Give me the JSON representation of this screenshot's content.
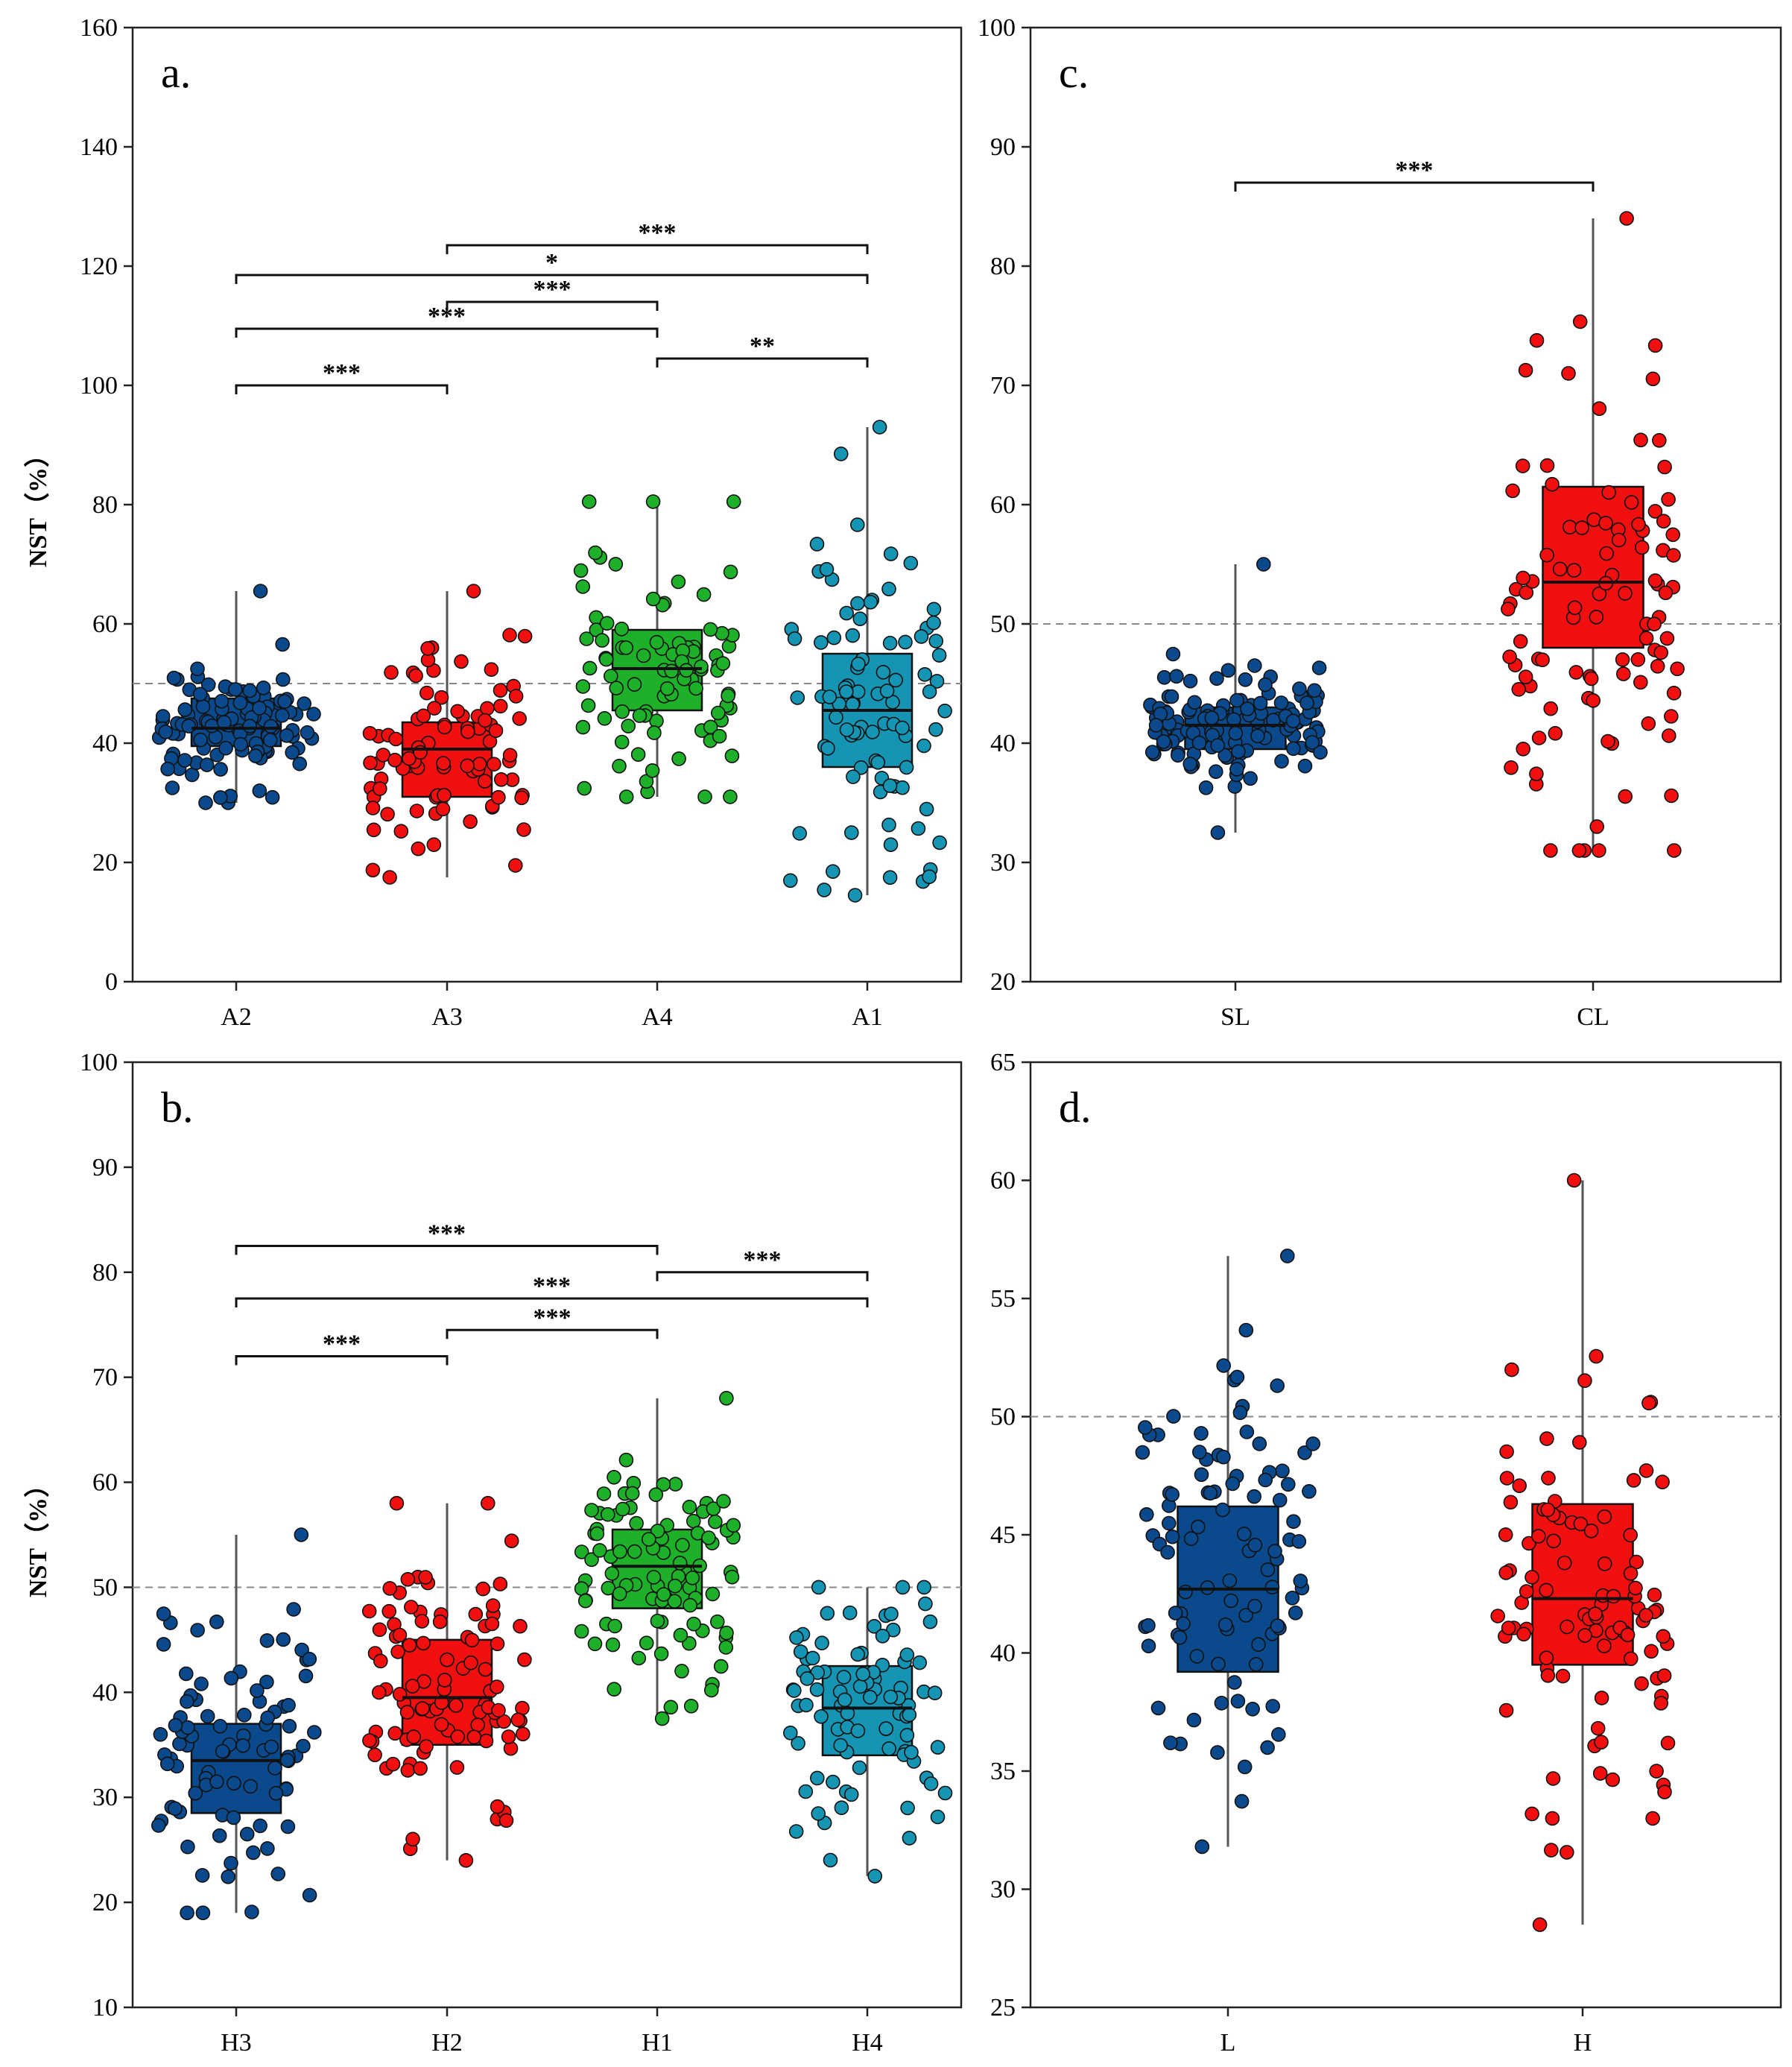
{
  "colors": {
    "navy": "#0a4a8c",
    "red": "#f20f0f",
    "green": "#1fb02a",
    "teal": "#1595b3"
  },
  "chart_data": [
    {
      "type": "box-strip",
      "panel_label": "a.",
      "ylabel": "NST（%）",
      "ylim": [
        0,
        160
      ],
      "yticks": [
        "0",
        "20",
        "40",
        "60",
        "80",
        "100",
        "120",
        "140",
        "160"
      ],
      "reference_line": 50,
      "categories": [
        "A2",
        "A3",
        "A4",
        "A1"
      ],
      "series": [
        {
          "name": "A2",
          "color": "navy",
          "q1": 39.5,
          "median": 42.5,
          "q3": 47.5,
          "lower": 30,
          "upper": 65.5,
          "n_points": 110
        },
        {
          "name": "A3",
          "color": "red",
          "q1": 31,
          "median": 39,
          "q3": 43.5,
          "lower": 17.5,
          "upper": 65.5,
          "n_points": 90
        },
        {
          "name": "A4",
          "color": "green",
          "q1": 45.5,
          "median": 52.5,
          "q3": 59,
          "lower": 31,
          "upper": 80.5,
          "n_points": 90
        },
        {
          "name": "A1",
          "color": "teal",
          "q1": 36,
          "median": 45.5,
          "q3": 55,
          "lower": 14.5,
          "upper": 93,
          "n_points": 90
        }
      ],
      "significance": [
        {
          "from": "A2",
          "to": "A3",
          "y": 100,
          "label": "***"
        },
        {
          "from": "A4",
          "to": "A1",
          "y": 104.5,
          "label": "**"
        },
        {
          "from": "A2",
          "to": "A4",
          "y": 109.5,
          "label": "***"
        },
        {
          "from": "A3",
          "to": "A4",
          "y": 114,
          "label": "***"
        },
        {
          "from": "A2",
          "to": "A1",
          "y": 118.5,
          "label": "*"
        },
        {
          "from": "A3",
          "to": "A1",
          "y": 123.5,
          "label": "***"
        }
      ]
    },
    {
      "type": "box-strip",
      "panel_label": "b.",
      "ylabel": "NST（%）",
      "ylim": [
        10,
        100
      ],
      "yticks": [
        "10",
        "20",
        "30",
        "40",
        "50",
        "60",
        "70",
        "80",
        "90",
        "100"
      ],
      "reference_line": 50,
      "categories": [
        "H3",
        "H2",
        "H1",
        "H4"
      ],
      "series": [
        {
          "name": "H3",
          "color": "navy",
          "q1": 28.5,
          "median": 33.5,
          "q3": 37,
          "lower": 19,
          "upper": 55,
          "n_points": 90
        },
        {
          "name": "H2",
          "color": "red",
          "q1": 35,
          "median": 39.5,
          "q3": 45,
          "lower": 24,
          "upper": 58,
          "n_points": 100
        },
        {
          "name": "H1",
          "color": "green",
          "q1": 48,
          "median": 52,
          "q3": 55.5,
          "lower": 37.5,
          "upper": 68,
          "n_points": 100
        },
        {
          "name": "H4",
          "color": "teal",
          "q1": 34,
          "median": 38.5,
          "q3": 42.5,
          "lower": 22.5,
          "upper": 50,
          "n_points": 90
        }
      ],
      "significance": [
        {
          "from": "H3",
          "to": "H2",
          "y": 72,
          "label": "***"
        },
        {
          "from": "H2",
          "to": "H1",
          "y": 74.5,
          "label": "***"
        },
        {
          "from": "H3",
          "to": "H4",
          "y": 77.5,
          "label": "***"
        },
        {
          "from": "H1",
          "to": "H4",
          "y": 80,
          "label": "***"
        },
        {
          "from": "H3",
          "to": "H1",
          "y": 82.5,
          "label": "***"
        }
      ]
    },
    {
      "type": "box-strip",
      "panel_label": "c.",
      "ylabel": "",
      "ylim": [
        20,
        100
      ],
      "yticks": [
        "20",
        "30",
        "40",
        "50",
        "60",
        "70",
        "80",
        "90",
        "100"
      ],
      "reference_line": 50,
      "categories": [
        "SL",
        "CL"
      ],
      "series": [
        {
          "name": "SL",
          "color": "navy",
          "q1": 39.5,
          "median": 41.5,
          "q3": 43,
          "lower": 32.5,
          "upper": 55,
          "n_points": 130
        },
        {
          "name": "CL",
          "color": "red",
          "q1": 48,
          "median": 53.5,
          "q3": 61.5,
          "lower": 31,
          "upper": 84,
          "n_points": 100
        }
      ],
      "significance": [
        {
          "from": "SL",
          "to": "CL",
          "y": 87,
          "label": "***"
        }
      ]
    },
    {
      "type": "box-strip",
      "panel_label": "d.",
      "ylabel": "",
      "ylim": [
        25,
        65
      ],
      "yticks": [
        "25",
        "30",
        "35",
        "40",
        "45",
        "50",
        "55",
        "60",
        "65"
      ],
      "reference_line": 50,
      "categories": [
        "L",
        "H"
      ],
      "series": [
        {
          "name": "L",
          "color": "navy",
          "q1": 39.2,
          "median": 42.7,
          "q3": 46.2,
          "lower": 31.8,
          "upper": 56.8,
          "n_points": 100
        },
        {
          "name": "H",
          "color": "red",
          "q1": 39.5,
          "median": 42.3,
          "q3": 46.3,
          "lower": 28.5,
          "upper": 60,
          "n_points": 100
        }
      ],
      "significance": []
    }
  ]
}
